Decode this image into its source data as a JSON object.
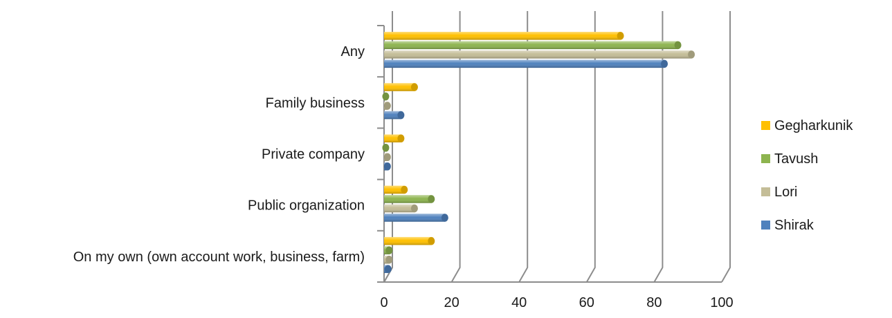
{
  "chart_data": {
    "type": "bar",
    "orientation": "horizontal",
    "title": "",
    "xlabel": "",
    "ylabel": "",
    "xlim": [
      0,
      100
    ],
    "x_ticks": [
      "0",
      "20",
      "40",
      "60",
      "80",
      "100"
    ],
    "grid": true,
    "legend_position": "right",
    "categories": [
      "Any",
      "Family business",
      "Private company",
      "Public organization",
      "On my own (own account work, business, farm)"
    ],
    "series": [
      {
        "name": "Gegharkunik",
        "color": "#FFC000",
        "values": [
          70,
          9,
          5,
          6,
          14
        ]
      },
      {
        "name": "Tavush",
        "color": "#8DB44F",
        "values": [
          87,
          0.5,
          0.5,
          14,
          1.5
        ]
      },
      {
        "name": "Lori",
        "color": "#C4BD97",
        "values": [
          91,
          1,
          1,
          9,
          1.5
        ]
      },
      {
        "name": "Shirak",
        "color": "#4F81BD",
        "values": [
          83,
          5,
          1,
          18,
          1.2
        ]
      }
    ]
  }
}
